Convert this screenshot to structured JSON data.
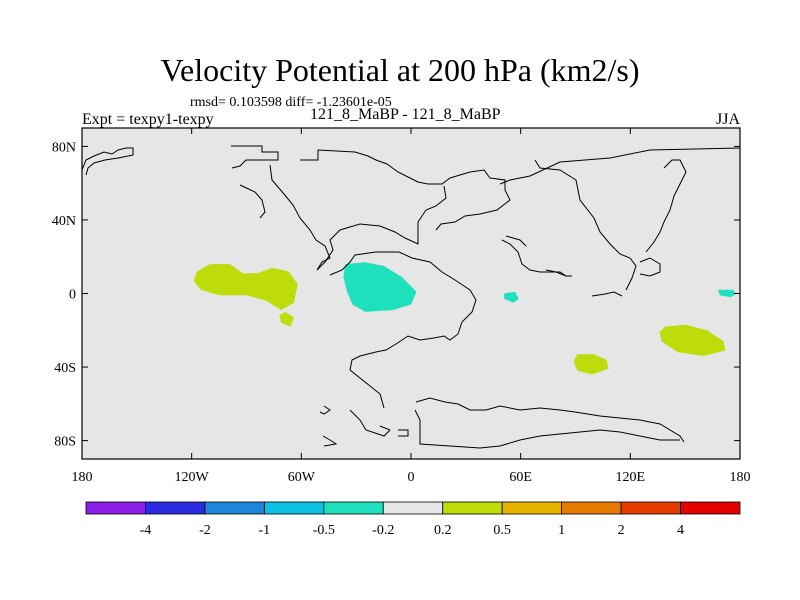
{
  "chart_data": {
    "type": "contour_map",
    "title": "Velocity Potential at 200 hPa (km2/s)",
    "stats_line": "rmsd= 0.103598 diff= -1.23601e-05",
    "left_label": "Expt = texpy1-texpy",
    "center_label": "121_8_MaBP - 121_8_MaBP",
    "right_label": "JJA",
    "xlim": [
      -180,
      180
    ],
    "ylim": [
      -90,
      90
    ],
    "x_ticks": [
      {
        "value": -180,
        "label": "180"
      },
      {
        "value": -120,
        "label": "120W"
      },
      {
        "value": -60,
        "label": "60W"
      },
      {
        "value": 0,
        "label": "0"
      },
      {
        "value": 60,
        "label": "60E"
      },
      {
        "value": 120,
        "label": "120E"
      },
      {
        "value": 180,
        "label": "180"
      }
    ],
    "y_ticks": [
      {
        "value": 80,
        "label": "80N"
      },
      {
        "value": 40,
        "label": "40N"
      },
      {
        "value": 0,
        "label": "0"
      },
      {
        "value": -40,
        "label": "40S"
      },
      {
        "value": -80,
        "label": "80S"
      }
    ],
    "colorbar": {
      "colors": [
        "#8a1ee6",
        "#2a2ae0",
        "#1f84db",
        "#0cc0e6",
        "#1fe0bd",
        "#e6e6e6",
        "#bedc0a",
        "#e6b400",
        "#e67a00",
        "#e63c00",
        "#e60000"
      ],
      "levels": [
        "-4",
        "-2",
        "-1",
        "-0.5",
        "-0.2",
        "0.2",
        "0.5",
        "1",
        "2",
        "4"
      ]
    },
    "regions": [
      {
        "name": "positive",
        "color": "#bedc0a",
        "points": [
          [
            -117,
            12
          ],
          [
            -110,
            16
          ],
          [
            -99,
            16
          ],
          [
            -92,
            11
          ],
          [
            -84,
            11
          ],
          [
            -76,
            14
          ],
          [
            -67,
            12
          ],
          [
            -62,
            5
          ],
          [
            -64,
            -5
          ],
          [
            -71,
            -9
          ],
          [
            -79,
            -4
          ],
          [
            -90,
            -1
          ],
          [
            -105,
            -1
          ],
          [
            -115,
            2
          ],
          [
            -119,
            7
          ]
        ]
      },
      {
        "name": "positive",
        "color": "#bedc0a",
        "points": [
          [
            -69,
            -10
          ],
          [
            -64,
            -13
          ],
          [
            -66,
            -18
          ],
          [
            -71,
            -16
          ],
          [
            -72,
            -12
          ]
        ]
      },
      {
        "name": "negative",
        "color": "#1fe0bd",
        "points": [
          [
            -36,
            16
          ],
          [
            -25,
            17
          ],
          [
            -15,
            15
          ],
          [
            -5,
            9
          ],
          [
            3,
            1
          ],
          [
            0,
            -6
          ],
          [
            -10,
            -9
          ],
          [
            -25,
            -10
          ],
          [
            -32,
            -6
          ],
          [
            -35,
            1
          ],
          [
            -37,
            9
          ]
        ]
      },
      {
        "name": "negative",
        "color": "#1fe0bd",
        "points": [
          [
            51,
            0
          ],
          [
            57,
            1
          ],
          [
            59,
            -3
          ],
          [
            56,
            -5
          ],
          [
            51,
            -3
          ]
        ]
      },
      {
        "name": "positive",
        "color": "#bedc0a",
        "points": [
          [
            91,
            -33
          ],
          [
            100,
            -33
          ],
          [
            107,
            -36
          ],
          [
            108,
            -41
          ],
          [
            99,
            -44
          ],
          [
            91,
            -42
          ],
          [
            89,
            -37
          ]
        ]
      },
      {
        "name": "positive",
        "color": "#bedc0a",
        "points": [
          [
            139,
            -18
          ],
          [
            150,
            -17
          ],
          [
            162,
            -20
          ],
          [
            171,
            -26
          ],
          [
            172,
            -31
          ],
          [
            160,
            -34
          ],
          [
            146,
            -32
          ],
          [
            137,
            -26
          ],
          [
            136,
            -21
          ]
        ]
      },
      {
        "name": "negative",
        "color": "#1fe0bd",
        "points": [
          [
            168,
            2
          ],
          [
            176,
            2
          ],
          [
            178,
            0
          ],
          [
            175,
            -2
          ],
          [
            169,
            -1
          ]
        ]
      }
    ]
  }
}
